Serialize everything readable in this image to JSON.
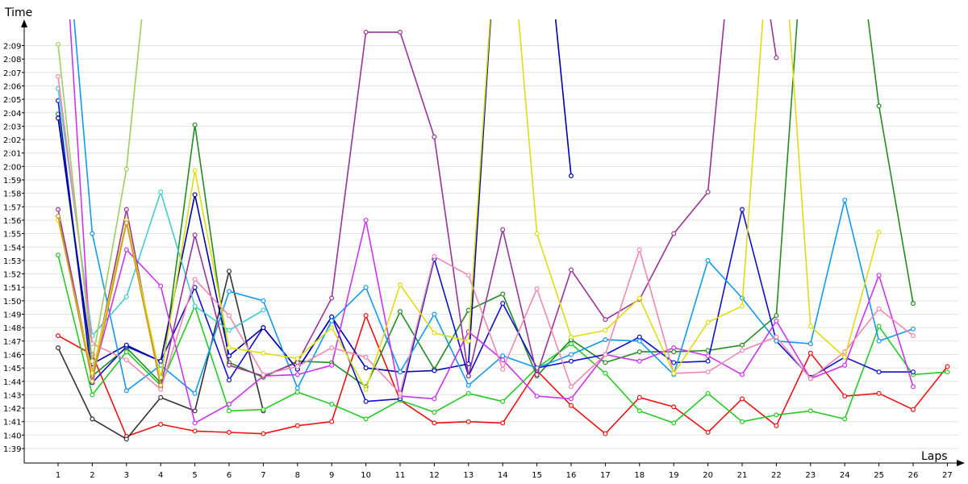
{
  "chart_data": {
    "type": "line",
    "xlabel": "Laps",
    "ylabel": "Time",
    "x_ticks": [
      1,
      2,
      3,
      4,
      5,
      6,
      7,
      8,
      9,
      10,
      11,
      12,
      13,
      14,
      15,
      16,
      17,
      18,
      19,
      20,
      21,
      22,
      23,
      24,
      25,
      26,
      27
    ],
    "y_tick_labels": [
      "1:39",
      "1:40",
      "1:41",
      "1:42",
      "1:43",
      "1:44",
      "1:45",
      "1:46",
      "1:47",
      "1:48",
      "1:49",
      "1:50",
      "1:51",
      "1:52",
      "1:53",
      "1:54",
      "1:55",
      "1:56",
      "1:57",
      "1:58",
      "1:59",
      "2:00",
      "2:01",
      "2:02",
      "2:03",
      "2:04",
      "2:05",
      "2:06",
      "2:07",
      "2:08",
      "2:09"
    ],
    "y_ticks_seconds": [
      99,
      100,
      101,
      102,
      103,
      104,
      105,
      106,
      107,
      108,
      109,
      110,
      111,
      112,
      113,
      114,
      115,
      116,
      117,
      118,
      119,
      120,
      121,
      122,
      123,
      124,
      125,
      126,
      127,
      128,
      129
    ],
    "xlim": [
      0,
      27.6
    ],
    "ylim_seconds": [
      98,
      132
    ],
    "grid": "horizontal",
    "series": [
      {
        "color": "#ee1111",
        "values": [
          107.4,
          106,
          99.9,
          100.8,
          100.3,
          100.2,
          100.1,
          100.7,
          101,
          108.9,
          102.6,
          100.9,
          101,
          100.9,
          104.8,
          102.2,
          100.1,
          102.8,
          102.1,
          100.2,
          102.7,
          100.7,
          106.1,
          102.9,
          103.1,
          101.9,
          105.1
        ]
      },
      {
        "color": "#333333",
        "values": [
          106.5,
          101.2,
          99.7,
          102.8,
          101.8,
          112.2,
          101.8
        ]
      },
      {
        "color": "#22cc22",
        "values": [
          113.4,
          103,
          106.2,
          103.7,
          109.6,
          101.8,
          101.9,
          103.2,
          102.3,
          101.2,
          102.6,
          101.7,
          103.1,
          102.5,
          105,
          106.8,
          104.6,
          101.8,
          100.9,
          103.1,
          101,
          101.5,
          101.8,
          101.2,
          108.1,
          104.5,
          104.7
        ]
      },
      {
        "color": "#228b22",
        "values": [
          123.9,
          104.4,
          106.5,
          103.9,
          123.1,
          105.4,
          104.3,
          105.5,
          105.4,
          103.6,
          109.2,
          104.9,
          109.3,
          110.5,
          104.4,
          107.1,
          105.4,
          106.2,
          106.2,
          106.3,
          106.7,
          108.9,
          145,
          145,
          124.5,
          109.8
        ]
      },
      {
        "color": "#1010cc",
        "values": [
          124.9,
          103.9,
          106.6,
          105.5,
          111,
          104.1,
          108,
          104.9,
          108.8,
          102.5,
          102.7,
          113.1,
          104.4,
          109.8,
          105,
          105.5,
          106,
          107.3,
          105.4,
          105.5,
          116.8,
          107,
          104.3,
          105.8,
          104.7,
          104.7
        ]
      },
      {
        "color": "#0000aa",
        "values": [
          123.6,
          105.3,
          106.7,
          105.5,
          117.9,
          105.9,
          108,
          104.9,
          108.8,
          105,
          104.7,
          104.8,
          105.3,
          145,
          145,
          119.3
        ]
      },
      {
        "color": "#1199ee",
        "values": [
          145,
          115,
          103.3,
          105.2,
          103.1,
          110.7,
          110,
          103.5,
          108.5,
          111,
          104.7,
          109,
          103.7,
          105.9,
          105,
          106,
          107.1,
          107,
          104.5,
          113,
          110.2,
          107,
          106.8,
          117.5,
          107,
          107.9
        ]
      },
      {
        "color": "#44cccc",
        "values": [
          125.8,
          107.4,
          110.3,
          118.1,
          109.6,
          107.8,
          109.3
        ]
      },
      {
        "color": "#cc33ee",
        "values": [
          145,
          104.3,
          113.8,
          111.1,
          100.9,
          102.3,
          104.4,
          104.5,
          105.2,
          116,
          102.9,
          102.7,
          107.7,
          105.6,
          102.9,
          102.7,
          106,
          105.5,
          106.5,
          105.9,
          104.5,
          108.5,
          104.2,
          105.2,
          111.9,
          103.6
        ]
      },
      {
        "color": "#993399",
        "values": [
          116.8,
          104.4,
          116.8,
          103.6,
          114.9,
          105.2,
          104.4,
          105.4,
          110.2,
          130,
          130,
          122.2,
          104.4,
          115.3,
          104.5,
          112.3,
          108.6,
          110.1,
          115,
          118.1,
          145,
          128.1
        ]
      },
      {
        "color": "#f088b0",
        "values": [
          126.7,
          106.8,
          105.6,
          103.4,
          111.6,
          108.9,
          104.5,
          105.1,
          106.5,
          105.8,
          103.1,
          113.3,
          111.9,
          104.9,
          110.9,
          103.6,
          106,
          113.8,
          104.6,
          104.7,
          106.3,
          107.3,
          104.2,
          106.2,
          109.4,
          107.4
        ]
      },
      {
        "color": "#dddd11",
        "values": [
          116,
          104.6,
          116,
          104.3,
          119.7,
          106.5,
          106.1,
          105.7,
          108,
          103.4,
          111.2,
          107.6,
          107,
          145,
          115,
          107.3,
          107.8,
          110.2,
          104.6,
          108.4,
          109.6,
          145,
          108.1,
          105.8,
          115.1
        ]
      },
      {
        "color": "#a0cc60",
        "values": [
          129.1,
          105.5,
          119.8,
          145
        ]
      },
      {
        "color": "#cc9922",
        "values": [
          116.3,
          104,
          115.8,
          103.7
        ]
      }
    ]
  }
}
